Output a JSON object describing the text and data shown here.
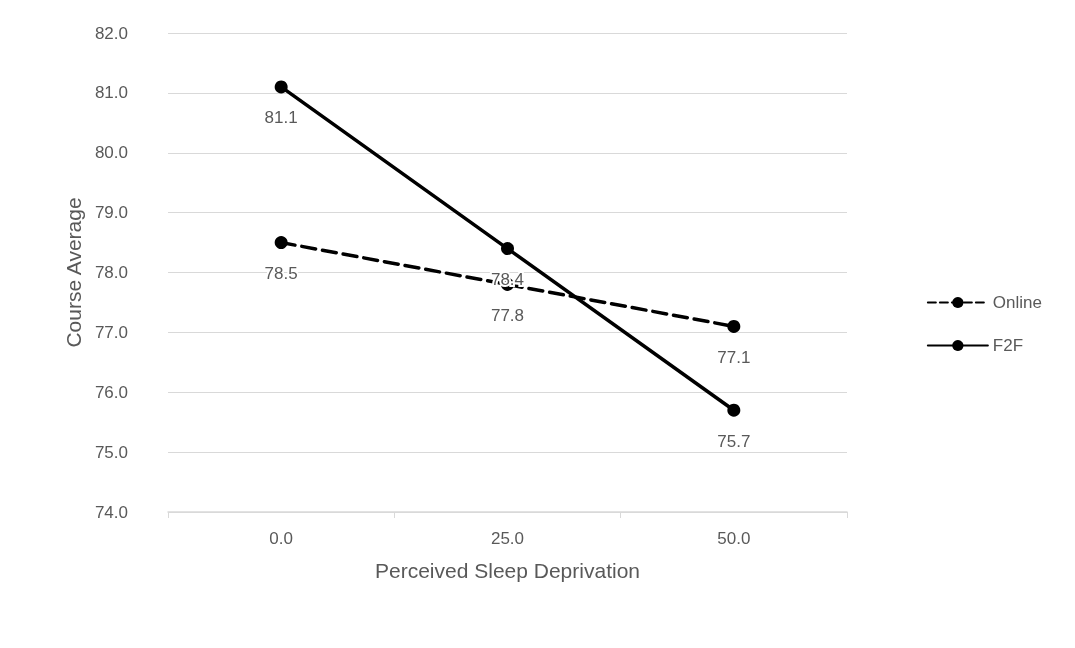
{
  "chart_data": {
    "type": "line",
    "xlabel": "Perceived Sleep Deprivation",
    "ylabel": "Course Average",
    "categories": [
      "0.0",
      "25.0",
      "50.0"
    ],
    "series": [
      {
        "name": "Online",
        "color": "#000000",
        "values": [
          78.5,
          77.8,
          77.1
        ],
        "line_style": "dashed"
      },
      {
        "name": "F2F",
        "color": "#000000",
        "values": [
          81.1,
          78.4,
          75.7
        ],
        "line_style": "solid"
      }
    ],
    "ylim": [
      74,
      82
    ],
    "yticks": [
      {
        "value": 74,
        "label": "74.0"
      },
      {
        "value": 75,
        "label": "75.0"
      },
      {
        "value": 76,
        "label": "76.0"
      },
      {
        "value": 77,
        "label": "77.0"
      },
      {
        "value": 78,
        "label": "78.0"
      },
      {
        "value": 79,
        "label": "79.0"
      },
      {
        "value": 80,
        "label": "80.0"
      },
      {
        "value": 81,
        "label": "81.0"
      },
      {
        "value": 82,
        "label": "82.0"
      }
    ],
    "grid": "y",
    "legend": "right",
    "marker": "circle",
    "data_labels": true
  }
}
